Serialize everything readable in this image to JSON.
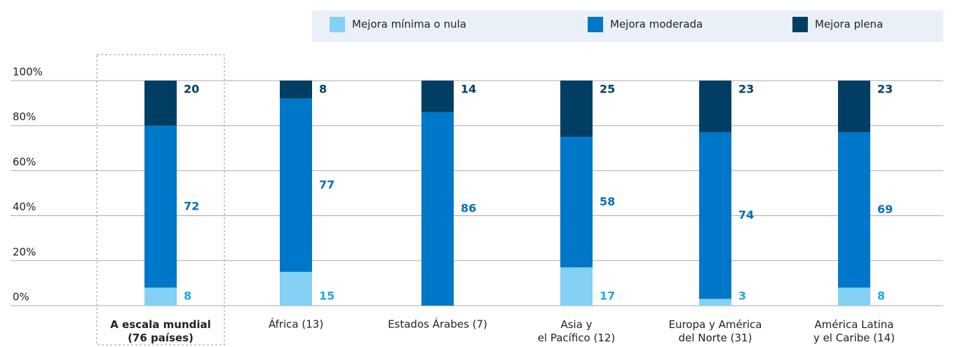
{
  "chart_data": {
    "type": "stacked_bar",
    "categories": [
      "A escala mundial\n(76 países)",
      "África (13)",
      "Estados Árabes (7)",
      "Asia y\nel Pacífico (12)",
      "Europa y América\ndel Norte (31)",
      "América Latina\ny el Caribe (14)"
    ],
    "series": [
      {
        "name": "Mejora mínima o nula",
        "color": "#85d1f5",
        "label_color": "#1ea8e3",
        "values": [
          8,
          15,
          0,
          17,
          3,
          8
        ]
      },
      {
        "name": "Mejora moderada",
        "color": "#0077c8",
        "label_color": "#0070bf",
        "values": [
          72,
          77,
          86,
          58,
          74,
          69
        ]
      },
      {
        "name": "Mejora plena",
        "color": "#003f63",
        "label_color": "#003f63",
        "values": [
          20,
          8,
          14,
          25,
          23,
          23
        ]
      }
    ],
    "ylim": [
      0,
      100
    ],
    "yticks": [
      {
        "value": 0,
        "label": "0%"
      },
      {
        "value": 20,
        "label": "20%"
      },
      {
        "value": 40,
        "label": "40%"
      },
      {
        "value": 60,
        "label": "60%"
      },
      {
        "value": 80,
        "label": "80%"
      },
      {
        "value": 100,
        "label": "100%"
      }
    ],
    "grid": true
  }
}
